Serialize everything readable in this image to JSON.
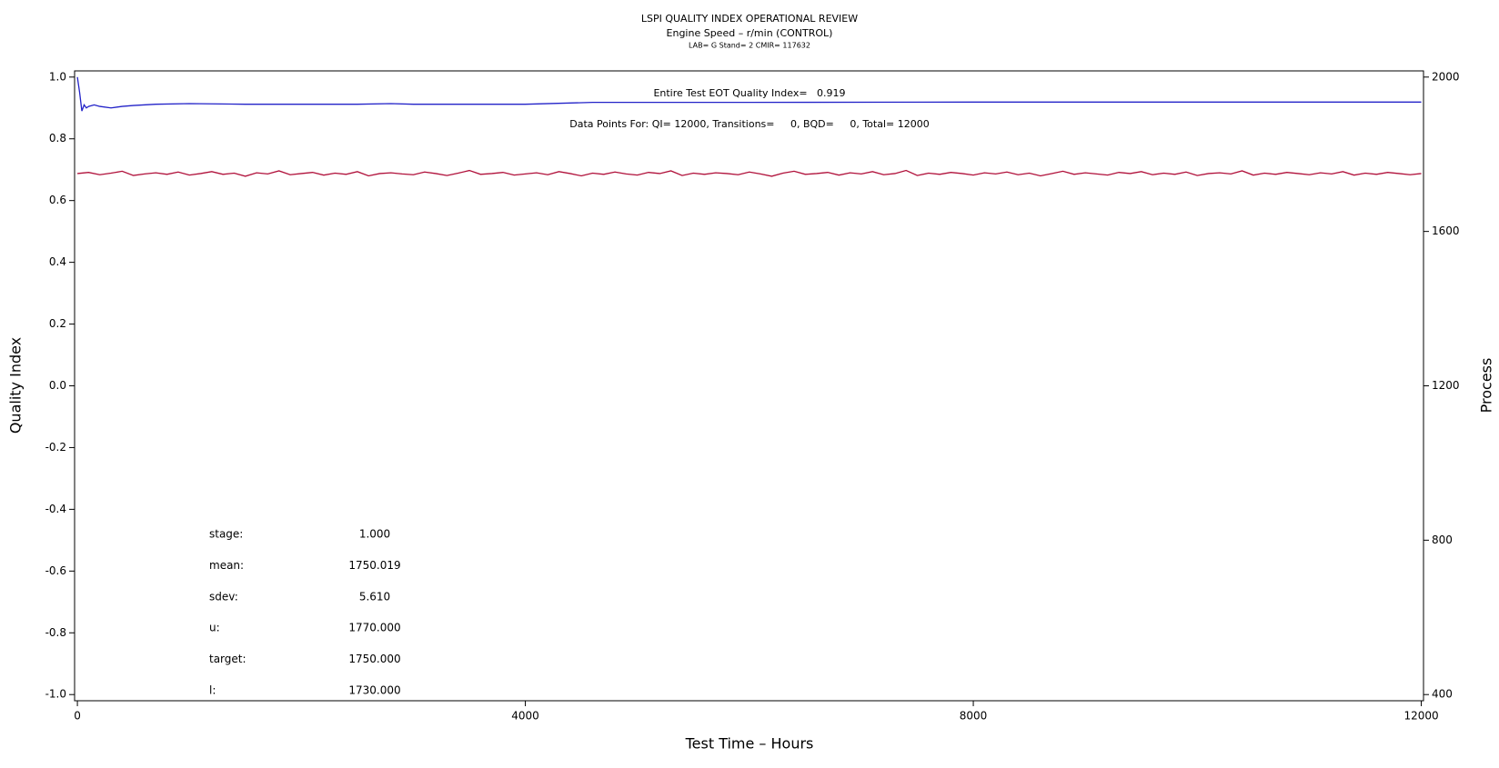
{
  "chart_data": {
    "type": "line",
    "title": "LSPI QUALITY INDEX OPERATIONAL REVIEW",
    "subtitle": "Engine Speed – r/min (CONTROL)",
    "caption": "LAB= G Stand= 2 CMIR= 117632",
    "xlabel": "Test Time – Hours",
    "ylabel": "Quality Index",
    "y2label": "Process",
    "annotations": [
      "Entire Test EOT Quality Index=   0.919",
      "Data Points For: QI= 12000, Transitions=     0, BQD=     0, Total= 12000"
    ],
    "stats": [
      {
        "label": "stage:",
        "value": "1.000"
      },
      {
        "label": "mean:",
        "value": "1750.019"
      },
      {
        "label": "sdev:",
        "value": "5.610"
      },
      {
        "label": "u:",
        "value": "1770.000"
      },
      {
        "label": "target:",
        "value": "1750.000"
      },
      {
        "label": "l:",
        "value": "1730.000"
      }
    ],
    "xlim": [
      -25,
      12020
    ],
    "xticks": [
      0,
      4000,
      8000,
      12000
    ],
    "ylim": [
      -1.02,
      1.02
    ],
    "yticks": [
      {
        "value": -1,
        "label": "-1.0"
      },
      -0.8,
      -0.6,
      -0.4,
      -0.2,
      {
        "value": 0,
        "label": "0.0"
      },
      0.2,
      0.4,
      0.6,
      0.8,
      {
        "value": 1,
        "label": "1.0"
      }
    ],
    "y2lim": [
      384,
      2016
    ],
    "y2ticks": [
      400,
      800,
      1200,
      1600,
      2000
    ],
    "series": [
      {
        "color": "#2222c8",
        "x": [
          0,
          20,
          40,
          60,
          80,
          100,
          150,
          200,
          300,
          400,
          500,
          700,
          1000,
          1500,
          2000,
          2500,
          2800,
          3000,
          3300,
          4000,
          4600,
          6000,
          8000,
          10000,
          12000
        ],
        "values": [
          1.0,
          0.95,
          0.89,
          0.91,
          0.9,
          0.905,
          0.91,
          0.905,
          0.9,
          0.905,
          0.908,
          0.912,
          0.914,
          0.912,
          0.912,
          0.912,
          0.914,
          0.912,
          0.912,
          0.912,
          0.918,
          0.918,
          0.919,
          0.919,
          0.919
        ]
      },
      {
        "color": "#b0103a",
        "axis": "y2",
        "x": [
          0,
          100,
          200,
          300,
          400,
          500,
          600,
          700,
          800,
          900,
          1000,
          1100,
          1200,
          1300,
          1400,
          1500,
          1600,
          1700,
          1800,
          1900,
          2000,
          2100,
          2200,
          2300,
          2400,
          2500,
          2600,
          2700,
          2800,
          2900,
          3000,
          3100,
          3200,
          3300,
          3400,
          3500,
          3600,
          3700,
          3800,
          3900,
          4000,
          4100,
          4200,
          4300,
          4400,
          4500,
          4600,
          4700,
          4800,
          4900,
          5000,
          5100,
          5200,
          5300,
          5400,
          5500,
          5600,
          5700,
          5800,
          5900,
          6000,
          6100,
          6200,
          6300,
          6400,
          6500,
          6600,
          6700,
          6800,
          6900,
          7000,
          7100,
          7200,
          7300,
          7400,
          7500,
          7600,
          7700,
          7800,
          7900,
          8000,
          8100,
          8200,
          8300,
          8400,
          8500,
          8600,
          8700,
          8800,
          8900,
          9000,
          9100,
          9200,
          9300,
          9400,
          9500,
          9600,
          9700,
          9800,
          9900,
          10000,
          10100,
          10200,
          10300,
          10400,
          10500,
          10600,
          10700,
          10800,
          10900,
          11000,
          11100,
          11200,
          11300,
          11400,
          11500,
          11600,
          11700,
          11800,
          11900,
          12000
        ],
        "values": [
          1750,
          1753,
          1747,
          1751,
          1756,
          1745,
          1749,
          1752,
          1748,
          1754,
          1746,
          1750,
          1755,
          1748,
          1751,
          1743,
          1752,
          1749,
          1757,
          1747,
          1750,
          1753,
          1746,
          1751,
          1748,
          1755,
          1744,
          1750,
          1752,
          1749,
          1747,
          1754,
          1750,
          1745,
          1751,
          1758,
          1748,
          1750,
          1753,
          1746,
          1749,
          1752,
          1747,
          1755,
          1750,
          1744,
          1751,
          1748,
          1754,
          1749,
          1746,
          1753,
          1750,
          1757,
          1745,
          1751,
          1748,
          1752,
          1750,
          1747,
          1754,
          1749,
          1743,
          1751,
          1756,
          1748,
          1750,
          1753,
          1746,
          1752,
          1749,
          1755,
          1747,
          1750,
          1758,
          1745,
          1751,
          1748,
          1753,
          1750,
          1746,
          1752,
          1749,
          1754,
          1747,
          1751,
          1744,
          1750,
          1756,
          1748,
          1752,
          1749,
          1746,
          1753,
          1750,
          1755,
          1747,
          1751,
          1748,
          1754,
          1745,
          1750,
          1752,
          1749,
          1757,
          1746,
          1751,
          1748,
          1753,
          1750,
          1747,
          1752,
          1749,
          1755,
          1746,
          1751,
          1748,
          1753,
          1750,
          1747,
          1750
        ]
      }
    ]
  }
}
